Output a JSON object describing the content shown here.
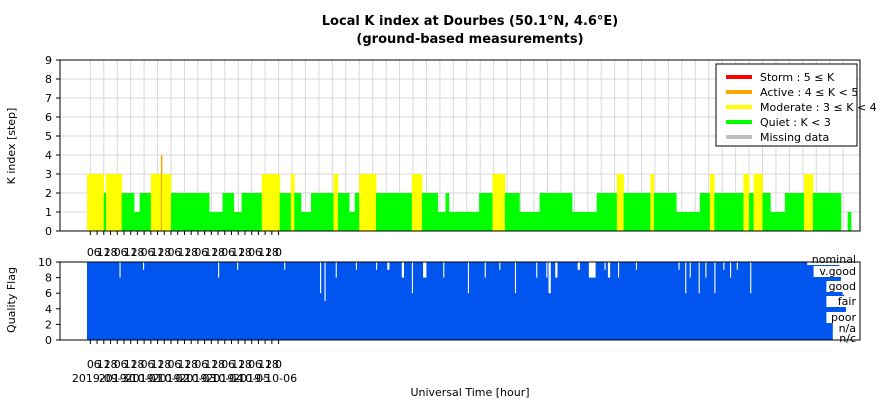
{
  "chart_data": [
    {
      "type": "bar",
      "title": "Local K index at Dourbes (50.1°N, 4.6°E)",
      "subtitle": "(ground-based measurements)",
      "ylabel": "K index [step]",
      "ylim": [
        0,
        9
      ],
      "yticks": [
        0,
        1,
        2,
        3,
        4,
        5,
        6,
        7,
        8,
        9
      ],
      "grid": true,
      "legend_position": "top-right",
      "legend": [
        {
          "label": "Storm : 5 ≤ K",
          "color": "#ff0000"
        },
        {
          "label": "Active : 4 ≤ K < 5",
          "color": "#ffa500"
        },
        {
          "label": "Moderate : 3 ≤ K < 4",
          "color": "#ffff00"
        },
        {
          "label": "Quiet : K < 3",
          "color": "#00ff00"
        },
        {
          "label": "Missing data",
          "color": "#c0c0c0"
        }
      ],
      "x_start": "2019-09-29 21:00",
      "x_end": "2019-10-07 00:00",
      "bar_width_hours": 1,
      "colors": {
        "quiet": "#00ff00",
        "moderate": "#ffff00",
        "active": "#ffa500",
        "storm": "#ff0000",
        "missing": "#c0c0c0"
      },
      "k_hourly": [
        3,
        3,
        3,
        3,
        3,
        3,
        3,
        3,
        3,
        3,
        3,
        3,
        3,
        3,
        3,
        2,
        2,
        3,
        3,
        3,
        3,
        3,
        3,
        3,
        3,
        3,
        3,
        3,
        3,
        3,
        3,
        2,
        2,
        2,
        2,
        2,
        2,
        2,
        2,
        2,
        2,
        2,
        1,
        1,
        1,
        1,
        1,
        2,
        2,
        2,
        2,
        2,
        2,
        2,
        2,
        2,
        2,
        3,
        3,
        3,
        3,
        3,
        3,
        3,
        3,
        3,
        4,
        3,
        3,
        3,
        3,
        3,
        3,
        3,
        3,
        2,
        2,
        2,
        2,
        2,
        2,
        2,
        2,
        2,
        2,
        2,
        2,
        2,
        2,
        2,
        2,
        2,
        2,
        2,
        2,
        2,
        2,
        2,
        2,
        2,
        2,
        2,
        2,
        2,
        2,
        2,
        2,
        2,
        2,
        1,
        1,
        1,
        1,
        1,
        1,
        1,
        1,
        1,
        1,
        1,
        1,
        2,
        2,
        2,
        2,
        2,
        2,
        2,
        2,
        2,
        2,
        1,
        1,
        1,
        1,
        1,
        1,
        1,
        2,
        2,
        2,
        2,
        2,
        2,
        2,
        2,
        2,
        2,
        2,
        2,
        2,
        2,
        2,
        2,
        2,
        2,
        3,
        3,
        3,
        3,
        3,
        3,
        3,
        3,
        3,
        3,
        3,
        3,
        3,
        3,
        3,
        3,
        2,
        2,
        2,
        2,
        2,
        2,
        2,
        2,
        2,
        2,
        3,
        3,
        3,
        2,
        2,
        2,
        2,
        2,
        2,
        1,
        1,
        1,
        1,
        1,
        1,
        1,
        1,
        1,
        2,
        2,
        2,
        2,
        2,
        2,
        2,
        2,
        2,
        2,
        2,
        2,
        2,
        2,
        2,
        2,
        2,
        2,
        2,
        2,
        3,
        3,
        3,
        3,
        2,
        2,
        2,
        2,
        2,
        2,
        2,
        2,
        2,
        2,
        1,
        1,
        1,
        1,
        1,
        2,
        2,
        2,
        2,
        3,
        3,
        3,
        3,
        3,
        3,
        3,
        3,
        3,
        3,
        3,
        3,
        3,
        3,
        3,
        2,
        2,
        2,
        2,
        2,
        2,
        2,
        2,
        2,
        2,
        2,
        2,
        2,
        2,
        2,
        2,
        2,
        2,
        2,
        2,
        2,
        2,
        2,
        2,
        2,
        2,
        2,
        2,
        2,
        2,
        2,
        2,
        3,
        3,
        3,
        3,
        3,
        3,
        3,
        3,
        3,
        2,
        2,
        2,
        2,
        2,
        2,
        2,
        2,
        2,
        2,
        2,
        2,
        2,
        2,
        1,
        1,
        1,
        1,
        1,
        1,
        1,
        2,
        2,
        2,
        1,
        1,
        1,
        1,
        1,
        1,
        1,
        1,
        1,
        1,
        1,
        1,
        1,
        1,
        1,
        1,
        1,
        1,
        1,
        1,
        1,
        1,
        1,
        1,
        1,
        1,
        1,
        2,
        2,
        2,
        2,
        2,
        2,
        2,
        2,
        2,
        2,
        2,
        2,
        3,
        3,
        3,
        3,
        3,
        3,
        3,
        3,
        3,
        3,
        3,
        2,
        2,
        2,
        2,
        2,
        2,
        2,
        2,
        2,
        2,
        2,
        2,
        2,
        1,
        1,
        1,
        1,
        1,
        1,
        1,
        1,
        1,
        1,
        1,
        1,
        1,
        1,
        1,
        1,
        1,
        1,
        2,
        2,
        2,
        2,
        2,
        2,
        2,
        2,
        2,
        2,
        2,
        2,
        2,
        2,
        2,
        2,
        2,
        2,
        2,
        2,
        2,
        2,
        2,
        2,
        2,
        2,
        2,
        2,
        2,
        1,
        1,
        1,
        1,
        1,
        1,
        1,
        1,
        1,
        1,
        1,
        1,
        1,
        1,
        1,
        1,
        1,
        1,
        1,
        1,
        1,
        1,
        2,
        2,
        2,
        2,
        2,
        2,
        2,
        2,
        2,
        2,
        2,
        2,
        2,
        2,
        2,
        2,
        2,
        2,
        3,
        3,
        3,
        3,
        3,
        3,
        2,
        2,
        2,
        2,
        2,
        2,
        2,
        2,
        2,
        2,
        2,
        2,
        2,
        2,
        2,
        2,
        2,
        2,
        2,
        2,
        2,
        2,
        2,
        2,
        3,
        3,
        3,
        2,
        2,
        2,
        2,
        2,
        2,
        2,
        2,
        2,
        2,
        2,
        2,
        2,
        2,
        2,
        2,
        2,
        2,
        2,
        2,
        1,
        1,
        1,
        1,
        1,
        1,
        1,
        1,
        1,
        1,
        1,
        1,
        1,
        1,
        1,
        1,
        1,
        1,
        1,
        1,
        1,
        2,
        2,
        2,
        2,
        2,
        2,
        2,
        2,
        2,
        3,
        3,
        3,
        3,
        2,
        2,
        2,
        2,
        2,
        2,
        2,
        2,
        2,
        2,
        2,
        2,
        2,
        2,
        2,
        2,
        2,
        2,
        2,
        2,
        2,
        2,
        2,
        2,
        2,
        2,
        3,
        3,
        3,
        3,
        3,
        2,
        2,
        2,
        2,
        3,
        3,
        3,
        3,
        3,
        3,
        3,
        3,
        2,
        2,
        2,
        2,
        2,
        2,
        2,
        1,
        1,
        1,
        1,
        1,
        1,
        1,
        1,
        1,
        1,
        1,
        1,
        1,
        2,
        2,
        2,
        2,
        2,
        2,
        2,
        2,
        2,
        2,
        2,
        2,
        2,
        2,
        2,
        2,
        2,
        3,
        3,
        3,
        3,
        3,
        3,
        3,
        3,
        2,
        2,
        2,
        2,
        2,
        2,
        2,
        2,
        2,
        2,
        2,
        2,
        2,
        2,
        2,
        2,
        2,
        2,
        2,
        2,
        2,
        2,
        2,
        2,
        2,
        0,
        0,
        0,
        0,
        0,
        0,
        1,
        1,
        1
      ]
    },
    {
      "type": "area",
      "ylabel": "Quality Flag",
      "xlabel": "Universal Time [hour]",
      "ylim": [
        0,
        10
      ],
      "yticks": [
        0,
        2,
        4,
        6,
        8,
        10
      ],
      "color": "#0055ee",
      "flag_levels": [
        "nominal",
        "v.good",
        "good",
        "fair",
        "poor",
        "n/a",
        "n/c"
      ],
      "x_tick_labels": [
        "0",
        "6",
        "12",
        "18",
        "0",
        "6",
        "12",
        "18",
        "0",
        "6",
        "12",
        "18",
        "0",
        "6",
        "12",
        "18",
        "0",
        "6",
        "12",
        "18",
        "0",
        "6",
        "12",
        "18",
        "0",
        "6",
        "12",
        "18",
        "0"
      ],
      "x_date_labels": [
        "2019-09-30",
        "2019-10-01",
        "2019-10-02",
        "2019-10-03",
        "2019-10-04",
        "2019-10-05",
        "2019-10-06"
      ],
      "quality_dips": [
        {
          "t": 29,
          "w": 1,
          "v": 8
        },
        {
          "t": 50,
          "w": 1,
          "v": 9
        },
        {
          "t": 117,
          "w": 1,
          "v": 8
        },
        {
          "t": 134,
          "w": 1,
          "v": 9
        },
        {
          "t": 176,
          "w": 1,
          "v": 9
        },
        {
          "t": 208,
          "w": 1,
          "v": 6
        },
        {
          "t": 212,
          "w": 1,
          "v": 5
        },
        {
          "t": 222,
          "w": 1,
          "v": 8
        },
        {
          "t": 240,
          "w": 1,
          "v": 9
        },
        {
          "t": 258,
          "w": 1,
          "v": 9
        },
        {
          "t": 268,
          "w": 2,
          "v": 9
        },
        {
          "t": 281,
          "w": 2,
          "v": 8
        },
        {
          "t": 290,
          "w": 1,
          "v": 6
        },
        {
          "t": 300,
          "w": 3,
          "v": 8
        },
        {
          "t": 318,
          "w": 1,
          "v": 8
        },
        {
          "t": 340,
          "w": 1,
          "v": 6
        },
        {
          "t": 355,
          "w": 1,
          "v": 8
        },
        {
          "t": 368,
          "w": 1,
          "v": 9
        },
        {
          "t": 382,
          "w": 1,
          "v": 6
        },
        {
          "t": 401,
          "w": 1,
          "v": 8
        },
        {
          "t": 410,
          "w": 1,
          "v": 8
        },
        {
          "t": 412,
          "w": 2,
          "v": 6
        },
        {
          "t": 418,
          "w": 2,
          "v": 8
        },
        {
          "t": 438,
          "w": 2,
          "v": 9
        },
        {
          "t": 448,
          "w": 6,
          "v": 8
        },
        {
          "t": 462,
          "w": 1,
          "v": 9
        },
        {
          "t": 465,
          "w": 2,
          "v": 8
        },
        {
          "t": 474,
          "w": 1,
          "v": 8
        },
        {
          "t": 490,
          "w": 1,
          "v": 9
        },
        {
          "t": 528,
          "w": 1,
          "v": 9
        },
        {
          "t": 534,
          "w": 1,
          "v": 6
        },
        {
          "t": 538,
          "w": 1,
          "v": 8
        },
        {
          "t": 546,
          "w": 1,
          "v": 6
        },
        {
          "t": 552,
          "w": 1,
          "v": 8
        },
        {
          "t": 560,
          "w": 1,
          "v": 6
        },
        {
          "t": 568,
          "w": 1,
          "v": 9
        },
        {
          "t": 574,
          "w": 1,
          "v": 8
        },
        {
          "t": 580,
          "w": 1,
          "v": 9
        },
        {
          "t": 592,
          "w": 1,
          "v": 6
        }
      ]
    }
  ]
}
